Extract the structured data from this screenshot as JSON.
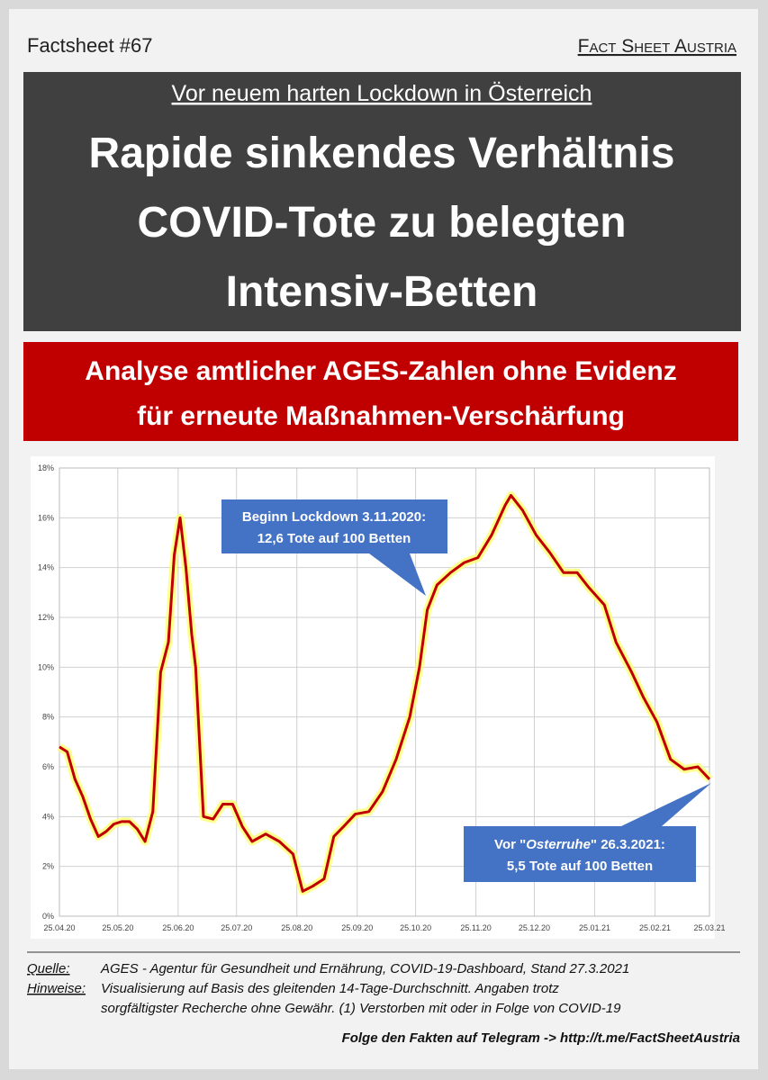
{
  "header": {
    "left": "Factsheet #67",
    "right": "Fact Sheet Austria",
    "kicker": "Vor neuem harten Lockdown in Österreich",
    "title": [
      "Rapide sinkendes Verhältnis",
      "COVID-Tote zu belegten",
      "Intensiv-Betten"
    ],
    "banner": [
      "Analyse amtlicher AGES-Zahlen ohne Evidenz",
      "für erneute Maßnahmen-Verschärfung"
    ]
  },
  "chart_data": {
    "type": "line",
    "x": [
      "25.04.20",
      "29.04.20",
      "03.05.20",
      "07.05.20",
      "11.05.20",
      "15.05.20",
      "19.05.20",
      "23.05.20",
      "27.05.20",
      "31.05.20",
      "04.06.20",
      "08.06.20",
      "12.06.20",
      "16.06.20",
      "20.06.20",
      "23.06.20",
      "26.06.20",
      "29.06.20",
      "02.07.20",
      "04.07.20",
      "08.07.20",
      "13.07.20",
      "18.07.20",
      "23.07.20",
      "28.07.20",
      "02.08.20",
      "09.08.20",
      "16.08.20",
      "23.08.20",
      "28.08.20",
      "02.09.20",
      "08.09.20",
      "13.09.20",
      "18.09.20",
      "24.09.20",
      "01.10.20",
      "08.10.20",
      "15.10.20",
      "22.10.20",
      "27.10.20",
      "31.10.20",
      "05.11.20",
      "12.11.20",
      "19.11.20",
      "26.11.20",
      "03.12.20",
      "10.12.20",
      "13.12.20",
      "19.12.20",
      "26.12.20",
      "02.01.21",
      "09.01.21",
      "16.01.21",
      "22.01.21",
      "30.01.21",
      "05.02.21",
      "13.02.21",
      "19.02.21",
      "26.02.21",
      "05.03.21",
      "12.03.21",
      "19.03.21",
      "25.03.21"
    ],
    "values": [
      6.8,
      6.6,
      5.5,
      4.8,
      3.9,
      3.2,
      3.4,
      3.7,
      3.8,
      3.8,
      3.5,
      3.0,
      4.2,
      9.8,
      11,
      14.5,
      16,
      14,
      11.3,
      10,
      4.0,
      3.9,
      4.5,
      4.5,
      3.6,
      3.0,
      3.3,
      3.0,
      2.5,
      1.0,
      1.2,
      1.5,
      3.2,
      3.6,
      4.1,
      4.2,
      5.0,
      6.3,
      8.0,
      10,
      12.3,
      13.3,
      13.8,
      14.2,
      14.4,
      15.3,
      16.5,
      16.9,
      16.3,
      15.3,
      14.6,
      13.8,
      13.8,
      13.2,
      12.5,
      11,
      9.8,
      8.8,
      7.8,
      6.3,
      5.9,
      6.0,
      5.5
    ],
    "color": "#c00000",
    "glow_color": "#ffff70",
    "xlim": [
      "25.04.20",
      "25.03.21"
    ],
    "xticks": [
      "25.04.20",
      "25.05.20",
      "25.06.20",
      "25.07.20",
      "25.08.20",
      "25.09.20",
      "25.10.20",
      "25.11.20",
      "25.12.20",
      "25.01.21",
      "25.02.21",
      "25.03.21"
    ],
    "ylim": [
      0,
      18
    ],
    "yticks": [
      {
        "value": 0,
        "label": "0%"
      },
      {
        "value": 2,
        "label": "2%"
      },
      {
        "value": 4,
        "label": "4%"
      },
      {
        "value": 6,
        "label": "6%"
      },
      {
        "value": 8,
        "label": "8%"
      },
      {
        "value": 10,
        "label": "10%"
      },
      {
        "value": 12,
        "label": "12%"
      },
      {
        "value": 14,
        "label": "14%"
      },
      {
        "value": 16,
        "label": "16%"
      },
      {
        "value": 18,
        "label": "18%"
      }
    ],
    "grid": true,
    "annotations": [
      {
        "lines": [
          "Beginn Lockdown 3.11.2020:",
          "12,6 Tote auf 100 Betten"
        ],
        "color": "#4472c4"
      },
      {
        "first_line": [
          "Vor \"",
          "Osterruhe",
          "\" 26.3.2021:"
        ],
        "second_line": "5,5 Tote auf 100 Betten",
        "color": "#4472c4"
      }
    ]
  },
  "footer": {
    "source_label": "Quelle:",
    "source": "AGES - Agentur für Gesundheit und Ernährung, COVID-19-Dashboard, Stand 27.3.2021",
    "notes_label": "Hinweise:",
    "notes": [
      "Visualisierung auf Basis des gleitenden 14-Tage-Durchschnitt. Angaben trotz",
      "sorgfältigster Recherche ohne Gewähr. (1) Verstorben mit oder in Folge von COVID-19"
    ],
    "telegram": "Folge den Fakten auf Telegram  ->  http://t.me/FactSheetAustria"
  }
}
